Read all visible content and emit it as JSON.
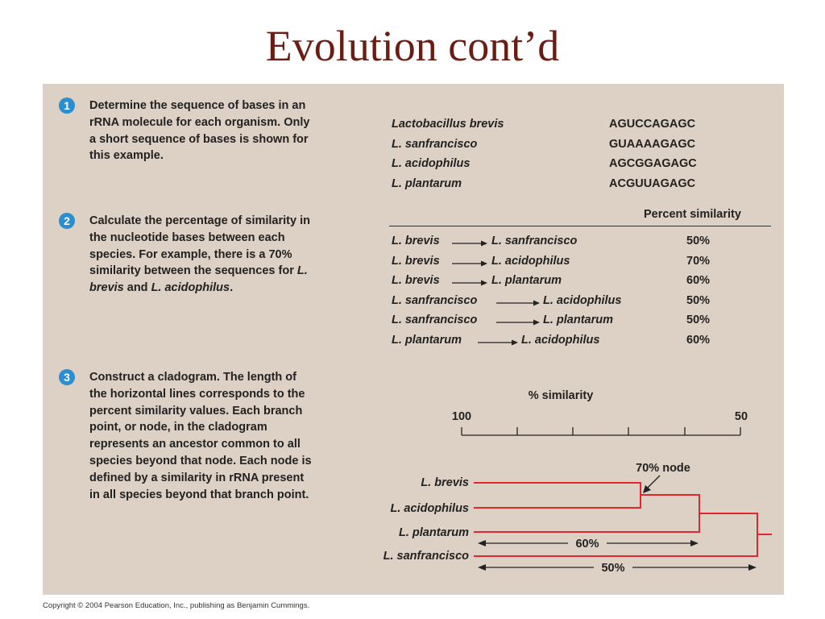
{
  "title": "Evolution cont’d",
  "steps": [
    {
      "number": "1",
      "text": "Determine the sequence of bases in an rRNA molecule for each organism. Only a short sequence of bases is shown for this example."
    },
    {
      "number": "2",
      "text_before": "Calculate the percentage of similarity in the nucleotide bases between each species. For example, there is a 70% similarity between the sequences for ",
      "italic1": "L. brevis",
      "middle": " and ",
      "italic2": "L. acidophilus",
      "text_after": "."
    },
    {
      "number": "3",
      "text": "Construct a cladogram. The length of the horizontal lines corresponds to the percent similarity values. Each branch point, or node, in the cladogram represents an ancestor common to all species beyond that node. Each node is defined by a similarity in rRNA present in all species beyond that branch point."
    }
  ],
  "sequences": [
    {
      "species": "Lactobacillus brevis",
      "sequence": "AGUCCAGAGC"
    },
    {
      "species": "L. sanfrancisco",
      "sequence": "GUAAAAGAGC"
    },
    {
      "species": "L. acidophilus",
      "sequence": "AGCGGAGAGC"
    },
    {
      "species": "L. plantarum",
      "sequence": "ACGUUAGAGC"
    }
  ],
  "similarity_header": "Percent similarity",
  "pairs": [
    {
      "from": "L. brevis",
      "to": "L. sanfrancisco",
      "value": "50%"
    },
    {
      "from": "L. brevis",
      "to": "L. acidophilus",
      "value": "70%"
    },
    {
      "from": "L. brevis",
      "to": "L. plantarum",
      "value": "60%"
    },
    {
      "from": "L. sanfrancisco",
      "to": "L. acidophilus",
      "value": "50%"
    },
    {
      "from": "L. sanfrancisco",
      "to": "L. plantarum",
      "value": "50%"
    },
    {
      "from": "L. plantarum",
      "to": "L. acidophilus",
      "value": "60%"
    }
  ],
  "cladogram": {
    "scale_label": "% similarity",
    "scale_left": "100",
    "scale_right": "50",
    "taxa": [
      "L. brevis",
      "L. acidophilus",
      "L. plantarum",
      "L. sanfrancisco"
    ],
    "node_label": "70% node",
    "span_60": "60%",
    "span_50": "50%",
    "line_color": "#e3262a"
  },
  "copyright": "Copyright © 2004 Pearson Education, Inc., publishing as Benjamin Cummings."
}
